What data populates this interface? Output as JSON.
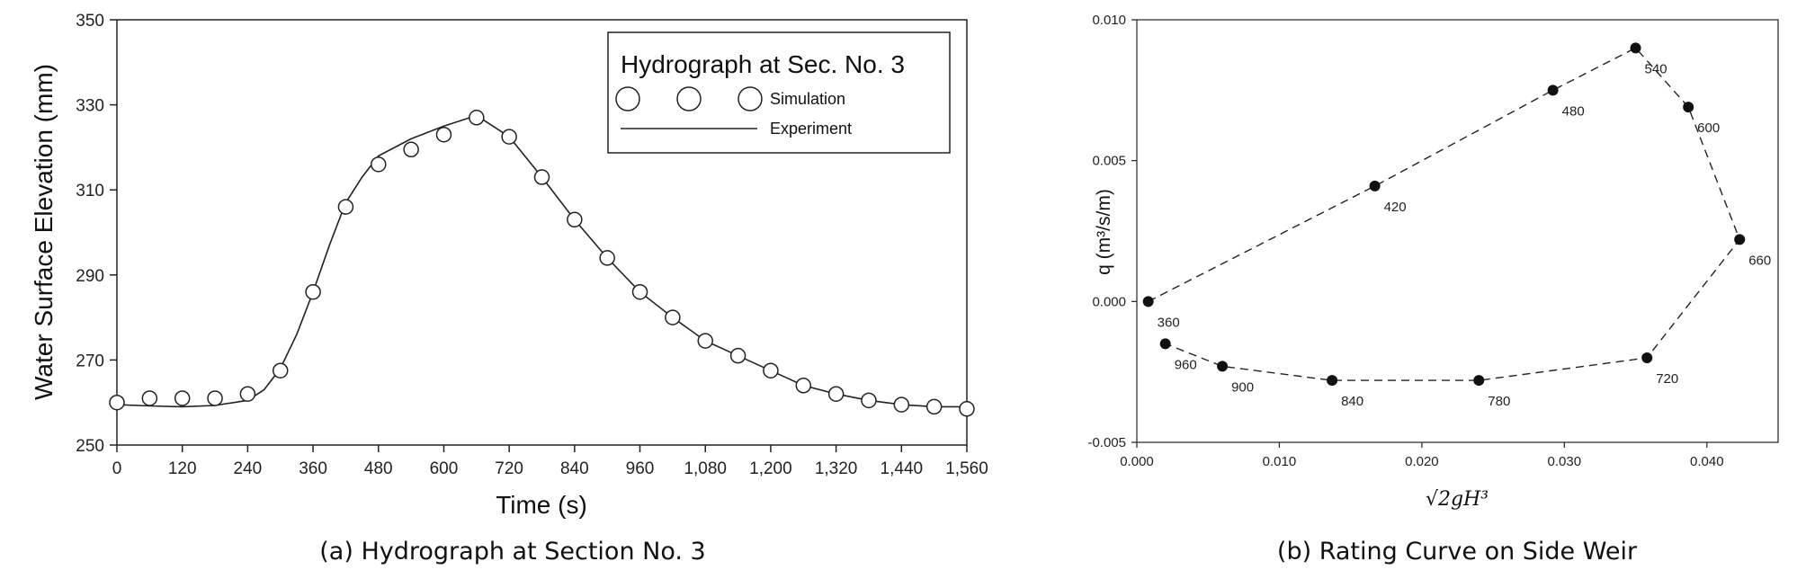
{
  "chart_data": [
    {
      "type": "line",
      "title": "Hydrograph at Sec. No. 3",
      "caption": "(a) Hydrograph at Section No. 3",
      "xlabel": "Time (s)",
      "ylabel": "Water Surface Elevation (mm)",
      "xlim": [
        0,
        1560
      ],
      "ylim": [
        250,
        350
      ],
      "xticks": [
        0,
        120,
        240,
        360,
        480,
        600,
        720,
        840,
        960,
        1080,
        1200,
        1320,
        1440,
        1560
      ],
      "xtick_labels": [
        "0",
        "120",
        "240",
        "360",
        "480",
        "600",
        "720",
        "840",
        "960",
        "1,080",
        "1,200",
        "1,320",
        "1,440",
        "1,560"
      ],
      "yticks": [
        250,
        270,
        290,
        310,
        330,
        350
      ],
      "ytick_labels": [
        "250",
        "270",
        "290",
        "310",
        "330",
        "350"
      ],
      "legend": {
        "title": "Hydrograph at Sec. No. 3",
        "position": "top-right",
        "entries": [
          "Simulation",
          "Experiment"
        ]
      },
      "series": [
        {
          "name": "Simulation",
          "marker": "open-circle",
          "x": [
            0,
            60,
            120,
            180,
            240,
            300,
            360,
            420,
            480,
            540,
            600,
            660,
            720,
            780,
            840,
            900,
            960,
            1020,
            1080,
            1140,
            1200,
            1260,
            1320,
            1380,
            1440,
            1500,
            1560
          ],
          "y": [
            260,
            261,
            261,
            261,
            262,
            267.5,
            286,
            306,
            316,
            319.5,
            323,
            327,
            322.5,
            313,
            303,
            294,
            286,
            280,
            274.5,
            271,
            267.5,
            264,
            262,
            260.5,
            259.5,
            259,
            258.5
          ]
        },
        {
          "name": "Experiment",
          "marker": "line",
          "x": [
            0,
            60,
            120,
            180,
            240,
            270,
            300,
            330,
            360,
            390,
            420,
            450,
            480,
            540,
            600,
            660,
            720,
            780,
            840,
            900,
            960,
            1020,
            1080,
            1140,
            1200,
            1260,
            1320,
            1380,
            1440,
            1500,
            1560
          ],
          "y": [
            259.5,
            259.2,
            259,
            259.3,
            260.5,
            263,
            268,
            276,
            286,
            297,
            307,
            313,
            318,
            322,
            325,
            327.5,
            322.5,
            313,
            303,
            294,
            286,
            280,
            274.5,
            271,
            267.5,
            264,
            262,
            260.5,
            259.5,
            259,
            259
          ]
        }
      ]
    },
    {
      "type": "scatter",
      "title": "",
      "caption": "(b) Rating Curve on Side Weir",
      "xlabel": "√2gH³",
      "ylabel": "q (m³/s/m)",
      "xlim": [
        0.0,
        0.045
      ],
      "ylim": [
        -0.005,
        0.01
      ],
      "xticks": [
        0.0,
        0.01,
        0.02,
        0.03,
        0.04
      ],
      "xtick_labels": [
        "0.000",
        "0.010",
        "0.020",
        "0.030",
        "0.040"
      ],
      "yticks": [
        -0.005,
        0.0,
        0.005,
        0.01
      ],
      "ytick_labels": [
        "-0.005",
        "0.000",
        "0.005",
        "0.010"
      ],
      "connector": "dashed",
      "points": [
        {
          "x": 0.0008,
          "y": 0.0,
          "label": "360"
        },
        {
          "x": 0.0167,
          "y": 0.0041,
          "label": "420"
        },
        {
          "x": 0.0292,
          "y": 0.0075,
          "label": "480"
        },
        {
          "x": 0.035,
          "y": 0.009,
          "label": "540"
        },
        {
          "x": 0.0387,
          "y": 0.0069,
          "label": "600"
        },
        {
          "x": 0.0423,
          "y": 0.0022,
          "label": "660"
        },
        {
          "x": 0.0358,
          "y": -0.002,
          "label": "720"
        },
        {
          "x": 0.024,
          "y": -0.0028,
          "label": "780"
        },
        {
          "x": 0.0137,
          "y": -0.0028,
          "label": "840"
        },
        {
          "x": 0.006,
          "y": -0.0023,
          "label": "900"
        },
        {
          "x": 0.002,
          "y": -0.0015,
          "label": "960"
        }
      ]
    }
  ]
}
